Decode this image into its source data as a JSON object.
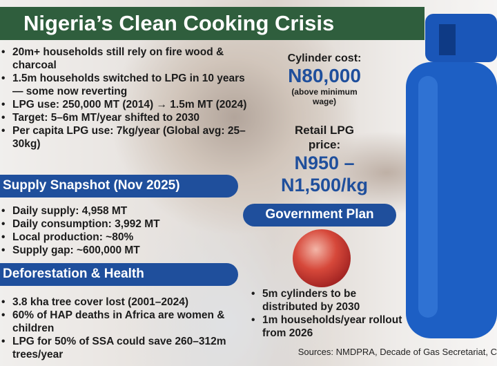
{
  "title": "Nigeria’s Clean Cooking Crisis",
  "intro_bullets": [
    "20m+ households still rely on fire wood & charcoal",
    "1.5m households switched to LPG in 10 years — some now reverting",
    "LPG use: 250,000 MT (2014) → 1.5m MT (2024)",
    "Target: 5–6m MT/year shifted to 2030",
    "Per capita LPG use: 7kg/year (Global avg: 25–30kg)"
  ],
  "supply": {
    "heading": "Supply Snapshot (Nov 2025)",
    "bullets": [
      "Daily supply: 4,958 MT",
      "Daily consumption: 3,992 MT",
      "Local production: ~80%",
      "Supply gap: ~600,000 MT"
    ]
  },
  "deforestation": {
    "heading": "Deforestation & Health",
    "bullets": [
      "3.8 kha tree cover lost (2001–2024)",
      "60% of HAP deaths in Africa are women & children",
      "LPG for 50% of SSA could save 260–312m trees/year"
    ]
  },
  "cylinder_cost": {
    "label": "Cylinder cost:",
    "value": "N80,000",
    "note": "(above minimum wage)"
  },
  "retail": {
    "label": "Retail LPG price:",
    "value": "N950 – N1,500/kg"
  },
  "government": {
    "heading": "Government Plan",
    "bullets": [
      "5m cylinders to be distributed by 2030",
      "1m households/year rollout from 2026"
    ]
  },
  "sources": "Sources: NMDPRA, Decade of Gas Secretariat, C",
  "colors": {
    "title_bg": "#2f5e3d",
    "pill_bg": "#1f4f9c",
    "cylinder": "#1d5fc4"
  }
}
